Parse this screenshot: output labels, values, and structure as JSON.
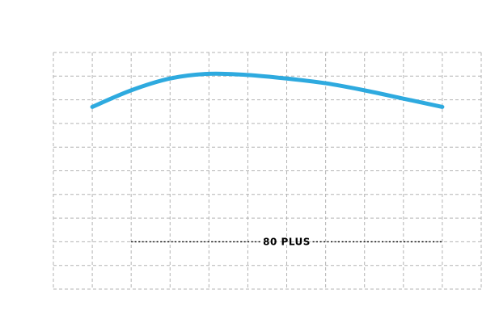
{
  "chart_data": {
    "type": "line",
    "title": "",
    "xlabel": "",
    "ylabel": "",
    "grid": true,
    "xlim": [
      0,
      11
    ],
    "ylim": [
      0,
      10
    ],
    "series": [
      {
        "color": "#2eaadf",
        "x": [
          1,
          2,
          3,
          4,
          5,
          6,
          7,
          8,
          9,
          10
        ],
        "y": [
          7.7,
          8.4,
          8.9,
          9.1,
          9.05,
          8.9,
          8.7,
          8.4,
          8.05,
          7.7
        ]
      }
    ],
    "reference_line": {
      "label": "80 PLUS",
      "y": 2,
      "x_start": 2,
      "x_end": 10
    }
  }
}
